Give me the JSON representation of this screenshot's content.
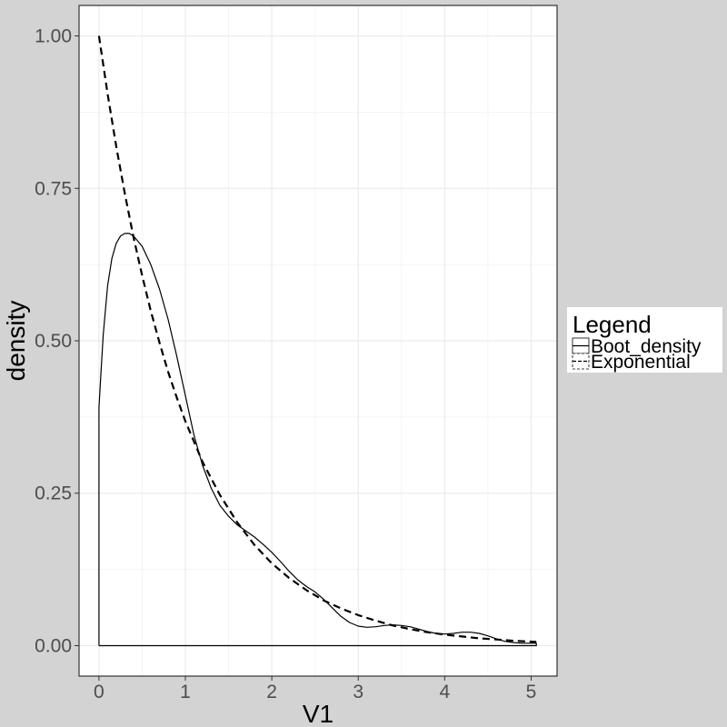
{
  "chart_data": {
    "type": "line",
    "title": "",
    "xlabel": "V1",
    "ylabel": "density",
    "xlim": [
      -0.23,
      5.3
    ],
    "ylim": [
      -0.05,
      1.05
    ],
    "x_ticks": [
      0,
      1,
      2,
      3,
      4,
      5
    ],
    "x_tick_labels": [
      "0",
      "1",
      "2",
      "3",
      "4",
      "5"
    ],
    "y_ticks": [
      0,
      0.25,
      0.5,
      0.75,
      1.0
    ],
    "y_tick_labels": [
      "0.00",
      "0.25",
      "0.50",
      "0.75",
      "1.00"
    ],
    "grid": true,
    "legend": {
      "title": "Legend",
      "placement": "right",
      "entries": [
        "Boot_density",
        "Exponential"
      ]
    },
    "series": [
      {
        "name": "Boot_density",
        "line_style": "solid",
        "color": "#000000",
        "closed_to_baseline": true,
        "x": [
          0,
          0.02,
          0.05,
          0.1,
          0.15,
          0.2,
          0.25,
          0.3,
          0.35,
          0.4,
          0.5,
          0.6,
          0.7,
          0.8,
          0.9,
          1.0,
          1.1,
          1.2,
          1.3,
          1.4,
          1.5,
          1.6,
          1.7,
          1.8,
          1.9,
          2.0,
          2.1,
          2.2,
          2.3,
          2.4,
          2.5,
          2.6,
          2.7,
          2.8,
          2.9,
          3.0,
          3.1,
          3.2,
          3.3,
          3.4,
          3.5,
          3.6,
          3.7,
          3.8,
          3.9,
          4.0,
          4.1,
          4.2,
          4.3,
          4.4,
          4.5,
          4.6,
          4.7,
          4.8,
          4.9,
          5.0,
          5.06
        ],
        "y": [
          0.39,
          0.44,
          0.51,
          0.59,
          0.635,
          0.66,
          0.672,
          0.676,
          0.676,
          0.672,
          0.655,
          0.625,
          0.585,
          0.535,
          0.475,
          0.41,
          0.345,
          0.295,
          0.258,
          0.23,
          0.212,
          0.198,
          0.188,
          0.178,
          0.166,
          0.153,
          0.138,
          0.122,
          0.108,
          0.097,
          0.088,
          0.076,
          0.062,
          0.048,
          0.038,
          0.032,
          0.03,
          0.031,
          0.033,
          0.034,
          0.033,
          0.031,
          0.027,
          0.023,
          0.02,
          0.019,
          0.02,
          0.022,
          0.022,
          0.02,
          0.016,
          0.011,
          0.007,
          0.005,
          0.004,
          0.004,
          0.004
        ]
      },
      {
        "name": "Exponential",
        "line_style": "dashed",
        "color": "#000000",
        "closed_to_baseline": false,
        "x": [
          0,
          0.1,
          0.2,
          0.3,
          0.4,
          0.5,
          0.6,
          0.7,
          0.8,
          0.9,
          1.0,
          1.2,
          1.4,
          1.6,
          1.8,
          2.0,
          2.2,
          2.4,
          2.6,
          2.8,
          3.0,
          3.2,
          3.4,
          3.6,
          3.8,
          4.0,
          4.2,
          4.4,
          4.6,
          4.8,
          5.06
        ],
        "y": [
          1.0,
          0.905,
          0.819,
          0.741,
          0.67,
          0.607,
          0.549,
          0.497,
          0.449,
          0.407,
          0.368,
          0.301,
          0.247,
          0.202,
          0.165,
          0.135,
          0.111,
          0.091,
          0.074,
          0.061,
          0.05,
          0.041,
          0.033,
          0.027,
          0.022,
          0.018,
          0.015,
          0.012,
          0.01,
          0.008,
          0.006
        ]
      }
    ]
  }
}
